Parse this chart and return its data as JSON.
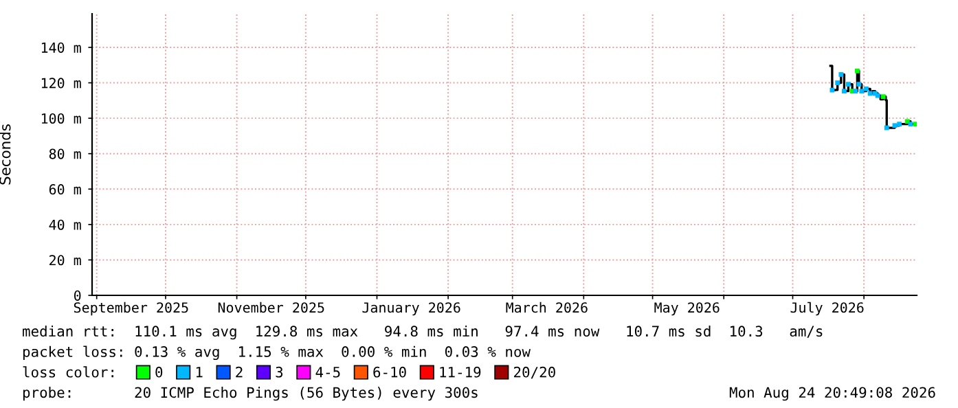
{
  "chart_data": {
    "type": "step",
    "ylabel": "Seconds",
    "xlim": [
      "2025-08-30",
      "2026-08-24"
    ],
    "xticks": [
      {
        "value": "2025-09-01",
        "label": null
      },
      {
        "value": "2025-09-16",
        "label": "September 2025"
      },
      {
        "value": "2025-10-01",
        "label": null
      },
      {
        "value": "2025-11-01",
        "label": null
      },
      {
        "value": "2025-11-16",
        "label": "November 2025"
      },
      {
        "value": "2025-12-01",
        "label": null
      },
      {
        "value": "2026-01-01",
        "label": null
      },
      {
        "value": "2026-01-16",
        "label": "January 2026"
      },
      {
        "value": "2026-02-01",
        "label": null
      },
      {
        "value": "2026-03-01",
        "label": null
      },
      {
        "value": "2026-03-16",
        "label": "March 2026"
      },
      {
        "value": "2026-04-01",
        "label": null
      },
      {
        "value": "2026-05-01",
        "label": null
      },
      {
        "value": "2026-05-16",
        "label": "May 2026"
      },
      {
        "value": "2026-06-01",
        "label": null
      },
      {
        "value": "2026-07-01",
        "label": null
      },
      {
        "value": "2026-07-16",
        "label": "July 2026"
      },
      {
        "value": "2026-08-01",
        "label": null
      }
    ],
    "ylim": [
      0,
      159
    ],
    "yticks": [
      0,
      {
        "value": 20,
        "label": "20 m"
      },
      {
        "value": 40,
        "label": "40 m"
      },
      {
        "value": 60,
        "label": "60 m"
      },
      {
        "value": 80,
        "label": "80 m"
      },
      {
        "value": 100,
        "label": "100 m"
      },
      {
        "value": 120,
        "label": "120 m"
      },
      {
        "value": 140,
        "label": "140 m"
      }
    ],
    "grid": true,
    "legend": "bottom",
    "legend_title": "loss color:",
    "series": [
      {
        "color": "#000000",
        "line_style": "solid",
        "x": [
          "2026-07-17T10:00",
          "2026-07-18T04:00",
          "2026-07-19T17:00",
          "2026-07-20T12:00",
          "2026-07-22T01:00",
          "2026-07-23T00:00",
          "2026-07-23T10:00",
          "2026-07-24T14:00",
          "2026-07-25T05:00",
          "2026-07-26T08:00",
          "2026-07-26T22:00",
          "2026-07-28T07:00",
          "2026-07-29T02:00",
          "2026-07-29T12:00",
          "2026-07-29T20:00",
          "2026-07-30T15:00",
          "2026-07-31T00:00",
          "2026-08-01T05:00",
          "2026-08-02T00:00",
          "2026-08-02T17:00",
          "2026-08-03T17:00",
          "2026-08-04T17:00",
          "2026-08-05T21:00",
          "2026-08-07T00:00",
          "2026-08-08T05:00",
          "2026-08-09T10:00",
          "2026-08-10T12:00",
          "2026-08-10T22:00",
          "2026-08-13T17:00",
          "2026-08-14T10:00",
          "2026-08-16T10:00",
          "2026-08-18T17:00",
          "2026-08-19T22:00",
          "2026-08-21T07:00",
          "2026-08-23T10:00"
        ],
        "values": [
          129.6,
          115.9,
          116,
          120,
          124.7,
          124.7,
          115.3,
          115.3,
          119.2,
          119.2,
          115.3,
          115.3,
          126.7,
          126.7,
          119.2,
          119.2,
          115.3,
          115.3,
          116.6,
          116.6,
          114,
          115.3,
          114,
          112.8,
          110.7,
          112.2,
          110.2,
          94.6,
          94.6,
          95.9,
          96.7,
          96.7,
          98.2,
          96.7,
          96.7
        ]
      },
      {
        "type": "scatter",
        "name": "0",
        "color": "#00ff00",
        "marker": "square",
        "x": [
          "2026-07-26T22:00",
          "2026-07-29T02:00",
          "2026-08-09T10:00",
          "2026-08-19T22:00",
          "2026-08-23T10:00"
        ],
        "values": [
          115.3,
          126.7,
          112.2,
          98.2,
          96.7
        ]
      },
      {
        "type": "scatter",
        "name": "1",
        "color": "#00b8ff",
        "marker": "square",
        "x": [
          "2026-07-18T04:00",
          "2026-07-20T12:00",
          "2026-07-22T01:00",
          "2026-07-23T10:00",
          "2026-07-25T05:00",
          "2026-07-28T07:00",
          "2026-07-29T20:00",
          "2026-07-31T00:00",
          "2026-08-02T00:00",
          "2026-08-03T17:00",
          "2026-08-05T21:00",
          "2026-08-07T00:00",
          "2026-08-10T22:00",
          "2026-08-14T10:00",
          "2026-08-16T10:00",
          "2026-08-21T07:00"
        ],
        "values": [
          115.9,
          120,
          124.7,
          115.3,
          119.2,
          115.3,
          119.2,
          115.3,
          116.6,
          114,
          114,
          112.8,
          94.6,
          95.9,
          96.7,
          96.7
        ]
      },
      {
        "type": "scatter",
        "name": "2",
        "color": "#0059ff",
        "marker": "square"
      },
      {
        "type": "scatter",
        "name": "3",
        "color": "#5e00ff",
        "marker": "square"
      },
      {
        "type": "scatter",
        "name": "4-5",
        "color": "#ff00ff",
        "marker": "square"
      },
      {
        "type": "scatter",
        "name": "6-10",
        "color": "#ff5500",
        "marker": "square"
      },
      {
        "type": "scatter",
        "name": "11-19",
        "color": "#ff0000",
        "marker": "square"
      },
      {
        "type": "scatter",
        "name": "20/20",
        "color": "#a10000",
        "marker": "square"
      }
    ],
    "annotations": [
      "median rtt:  110.1 ms avg  129.8 ms max   94.8 ms min   97.4 ms now   10.7 ms sd  10.3   am/s",
      "packet loss: 0.13 % avg  1.15 % max  0.00 % min  0.03 % now",
      "probe:       20 ICMP Echo Pings (56 Bytes) every 300s",
      "Mon Aug 24 20:49:08 2026"
    ]
  }
}
